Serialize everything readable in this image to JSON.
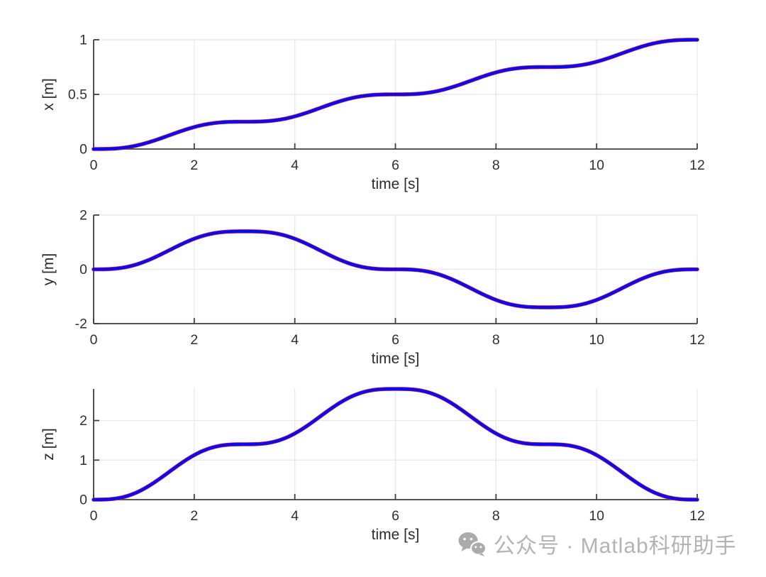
{
  "figure": {
    "background": "#ffffff",
    "axis_color": "#3f3f3f",
    "grid_color": "#e7e7e7",
    "tick_label_color": "#303030",
    "label_color": "#2b2b2b"
  },
  "chart_data": [
    {
      "type": "line",
      "name": "x-position",
      "title": "",
      "xlabel": "time [s]",
      "ylabel": "x [m]",
      "xlim": [
        0,
        12
      ],
      "ylim": [
        0,
        1
      ],
      "xticks": [
        0,
        2,
        4,
        6,
        8,
        10,
        12
      ],
      "yticks": [
        0,
        0.5,
        1
      ],
      "grid": true,
      "legend": "none",
      "interpolation": "smoothstep between knots: v = v0 + (v1-v0)*(u - sin(2*pi*u)/(2*pi)), u=(t-t0)/(t1-t0)",
      "series": [
        {
          "name": "reference",
          "color": "#e02929",
          "width": 5.6,
          "knot_t": [
            0,
            3,
            6,
            9,
            12
          ],
          "knot_v": [
            0,
            0.25,
            0.5,
            0.75,
            1
          ]
        },
        {
          "name": "actual",
          "color": "#0a0af0",
          "width": 4.3,
          "knot_t": [
            0,
            3,
            6,
            9,
            12
          ],
          "knot_v": [
            0,
            0.25,
            0.5,
            0.75,
            1
          ]
        }
      ]
    },
    {
      "type": "line",
      "name": "y-position",
      "title": "",
      "xlabel": "time [s]",
      "ylabel": "y [m]",
      "xlim": [
        0,
        12
      ],
      "ylim": [
        -2,
        2
      ],
      "xticks": [
        0,
        2,
        4,
        6,
        8,
        10,
        12
      ],
      "yticks": [
        -2,
        0,
        2
      ],
      "grid": true,
      "legend": "none",
      "interpolation": "smoothstep between knots: v = v0 + (v1-v0)*(u - sin(2*pi*u)/(2*pi)), u=(t-t0)/(t1-t0)",
      "series": [
        {
          "name": "reference",
          "color": "#e02929",
          "width": 5.6,
          "knot_t": [
            0,
            3,
            6,
            9,
            12
          ],
          "knot_v": [
            0,
            1.4,
            0,
            -1.4,
            0
          ]
        },
        {
          "name": "actual",
          "color": "#0a0af0",
          "width": 4.3,
          "knot_t": [
            0,
            3,
            6,
            9,
            12
          ],
          "knot_v": [
            0,
            1.4,
            0,
            -1.4,
            0
          ]
        }
      ]
    },
    {
      "type": "line",
      "name": "z-position",
      "title": "",
      "xlabel": "time [s]",
      "ylabel": "z [m]",
      "xlim": [
        0,
        12
      ],
      "ylim": [
        0,
        2.8
      ],
      "xticks": [
        0,
        2,
        4,
        6,
        8,
        10,
        12
      ],
      "yticks": [
        0,
        1,
        2
      ],
      "grid": true,
      "legend": "none",
      "interpolation": "smoothstep between knots: v = v0 + (v1-v0)*(u - sin(2*pi*u)/(2*pi)), u=(t-t0)/(t1-t0)",
      "series": [
        {
          "name": "reference",
          "color": "#e02929",
          "width": 5.6,
          "knot_t": [
            0,
            3,
            6,
            9,
            12
          ],
          "knot_v": [
            0,
            1.4,
            2.8,
            1.4,
            0
          ]
        },
        {
          "name": "actual",
          "color": "#0a0af0",
          "width": 4.3,
          "knot_t": [
            0,
            3,
            6,
            9,
            12
          ],
          "knot_v": [
            0,
            1.4,
            2.8,
            1.4,
            0
          ]
        }
      ]
    }
  ],
  "watermark": {
    "icon": "wechat-icon",
    "text": "公众号 · Matlab科研助手",
    "color": "#b3b3b3",
    "icon_color": "#ababab"
  }
}
